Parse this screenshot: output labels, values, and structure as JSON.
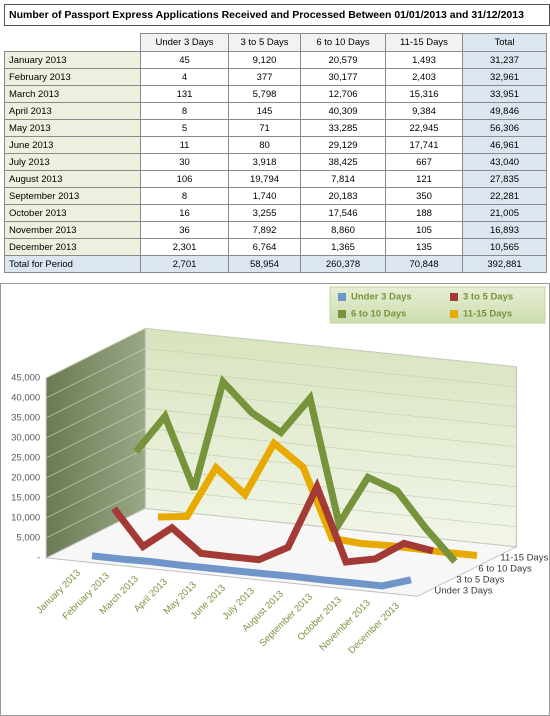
{
  "table": {
    "title": "Number of Passport Express Applications Received and Processed Between 01/01/2013 and 31/12/2013",
    "columns": [
      "Under 3 Days",
      "3 to 5 Days",
      "6 to 10 Days",
      "11-15 Days",
      "Total"
    ],
    "rows": [
      [
        "January 2013",
        "45",
        "9,120",
        "20,579",
        "1,493",
        "31,237"
      ],
      [
        "February 2013",
        "4",
        "377",
        "30,177",
        "2,403",
        "32,961"
      ],
      [
        "March 2013",
        "131",
        "5,798",
        "12,706",
        "15,316",
        "33,951"
      ],
      [
        "April 2013",
        "8",
        "145",
        "40,309",
        "9,384",
        "49,846"
      ],
      [
        "May 2013",
        "5",
        "71",
        "33,285",
        "22,945",
        "56,306"
      ],
      [
        "June 2013",
        "11",
        "80",
        "29,129",
        "17,741",
        "46,961"
      ],
      [
        "July 2013",
        "30",
        "3,918",
        "38,425",
        "667",
        "43,040"
      ],
      [
        "August 2013",
        "106",
        "19,794",
        "7,814",
        "121",
        "27,835"
      ],
      [
        "September 2013",
        "8",
        "1,740",
        "20,183",
        "350",
        "22,281"
      ],
      [
        "October 2013",
        "16",
        "3,255",
        "17,546",
        "188",
        "21,005"
      ],
      [
        "November 2013",
        "36",
        "7,892",
        "8,860",
        "105",
        "16,893"
      ],
      [
        "December 2013",
        "2,301",
        "6,764",
        "1,365",
        "135",
        "10,565"
      ],
      [
        "Total for Period",
        "2,701",
        "58,954",
        "260,378",
        "70,848",
        "392,881"
      ]
    ]
  },
  "chart_data": {
    "type": "line",
    "categories": [
      "January 2013",
      "February 2013",
      "March 2013",
      "April 2013",
      "May 2013",
      "June 2013",
      "July 2013",
      "August 2013",
      "September 2013",
      "October 2013",
      "November 2013",
      "December 2013"
    ],
    "series": [
      {
        "name": "Under 3 Days",
        "color": "#6f95c9",
        "values": [
          45,
          4,
          131,
          8,
          5,
          11,
          30,
          106,
          8,
          16,
          36,
          2301
        ]
      },
      {
        "name": "3 to 5 Days",
        "color": "#a33a36",
        "values": [
          9120,
          377,
          5798,
          145,
          71,
          80,
          3918,
          19794,
          1740,
          3255,
          7892,
          6764
        ]
      },
      {
        "name": "6 to 10 Days",
        "color": "#77933c",
        "values": [
          20579,
          30177,
          12706,
          40309,
          33285,
          29129,
          38425,
          7814,
          20183,
          17546,
          8860,
          1365
        ]
      },
      {
        "name": "11-15 Days",
        "color": "#e8aa00",
        "values": [
          1493,
          2403,
          15316,
          9384,
          22945,
          17741,
          667,
          121,
          350,
          188,
          105,
          135
        ]
      }
    ],
    "ylim": [
      0,
      45000
    ],
    "yticks": [
      {
        "value": 0,
        "label": "-"
      },
      {
        "value": 5000,
        "label": "5,000"
      },
      {
        "value": 10000,
        "label": "10,000"
      },
      {
        "value": 15000,
        "label": "15,000"
      },
      {
        "value": 20000,
        "label": "20,000"
      },
      {
        "value": 25000,
        "label": "25,000"
      },
      {
        "value": 30000,
        "label": "30,000"
      },
      {
        "value": 35000,
        "label": "35,000"
      },
      {
        "value": 40000,
        "label": "40,000"
      },
      {
        "value": 45000,
        "label": "45,000"
      }
    ],
    "grid": true,
    "legend": "top-right"
  }
}
